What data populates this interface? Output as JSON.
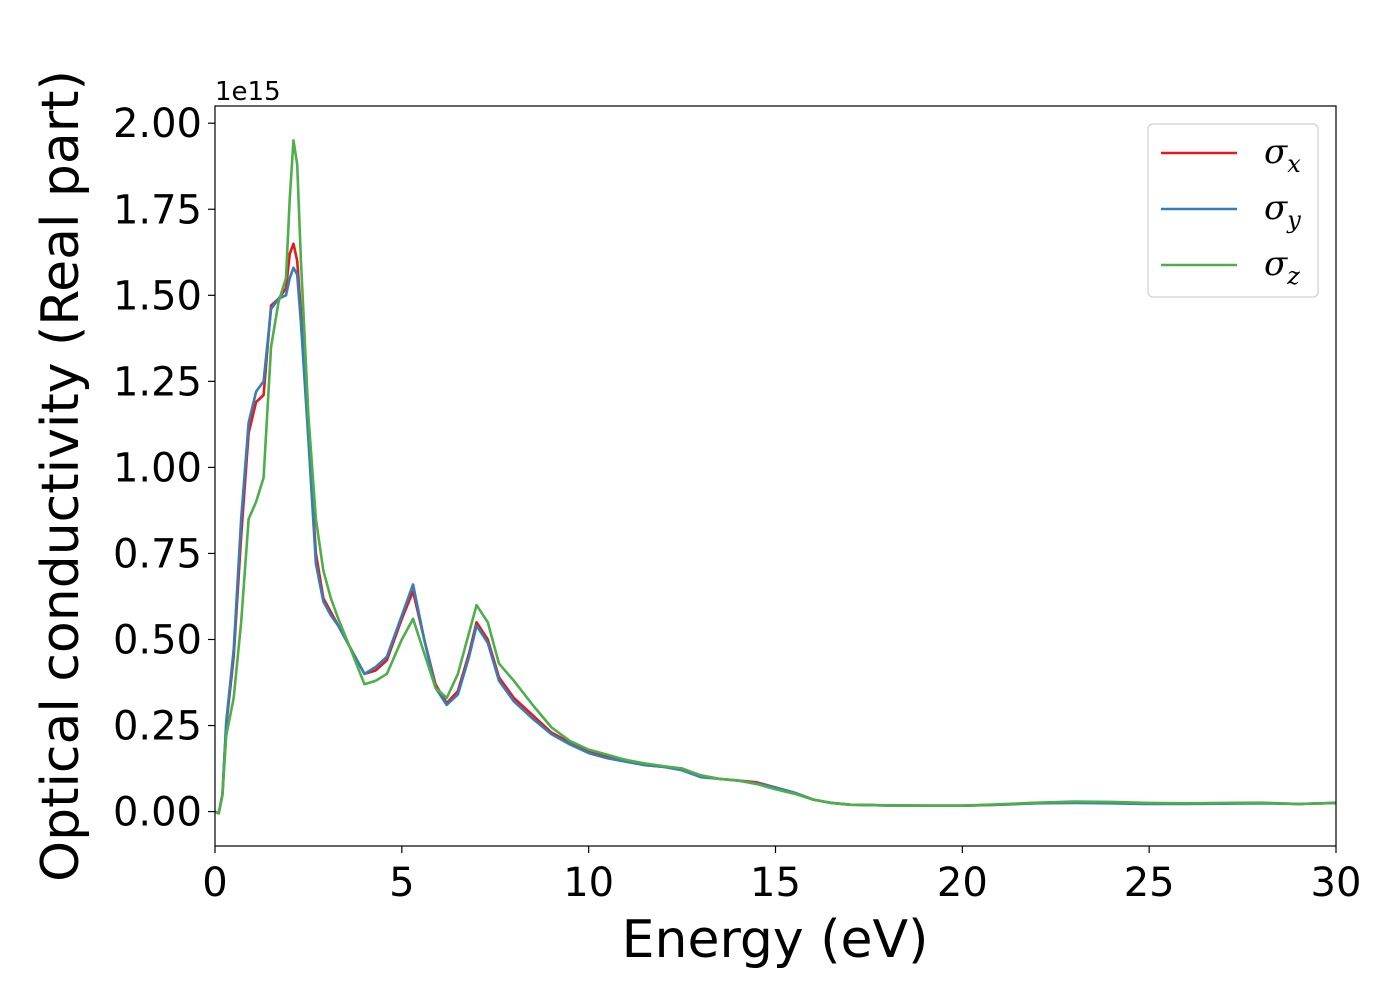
{
  "chart_data": {
    "type": "line",
    "title": "",
    "xlabel": "Energy (eV)",
    "ylabel": "Optical conductivity (Real part)",
    "y_offset_label": "1e15",
    "xlim": [
      0,
      30
    ],
    "ylim": [
      -0.1,
      2.05
    ],
    "x_ticks": [
      0,
      5,
      10,
      15,
      20,
      25,
      30
    ],
    "x_tick_labels": [
      "0",
      "5",
      "10",
      "15",
      "20",
      "25",
      "30"
    ],
    "y_ticks": [
      0.0,
      0.25,
      0.5,
      0.75,
      1.0,
      1.25,
      1.5,
      1.75,
      2.0
    ],
    "y_tick_labels": [
      "0.00",
      "0.25",
      "0.50",
      "0.75",
      "1.00",
      "1.25",
      "1.50",
      "1.75",
      "2.00"
    ],
    "grid": false,
    "legend_position": "top-right",
    "series": [
      {
        "name": "σx",
        "name_base": "σ",
        "name_sub": "x",
        "color": "#e41a1c",
        "x": [
          0,
          0.1,
          0.2,
          0.3,
          0.5,
          0.7,
          0.9,
          1.1,
          1.3,
          1.5,
          1.7,
          1.9,
          2.0,
          2.1,
          2.2,
          2.3,
          2.5,
          2.7,
          2.9,
          3.1,
          3.3,
          3.6,
          4.0,
          4.3,
          4.6,
          5.0,
          5.3,
          5.6,
          5.9,
          6.2,
          6.5,
          6.8,
          7.0,
          7.3,
          7.6,
          8.0,
          8.5,
          9.0,
          9.5,
          10.0,
          10.5,
          11.0,
          11.5,
          12.0,
          12.5,
          13.0,
          13.5,
          14.0,
          14.5,
          15.0,
          15.5,
          16.0,
          16.5,
          17.0,
          18.0,
          19.0,
          20.0,
          21.0,
          22.0,
          23.0,
          24.0,
          25.0,
          26.0,
          27.0,
          28.0,
          29.0,
          30.0
        ],
        "y": [
          0.0,
          -0.005,
          0.05,
          0.25,
          0.45,
          0.8,
          1.1,
          1.19,
          1.21,
          1.47,
          1.49,
          1.52,
          1.62,
          1.65,
          1.6,
          1.45,
          1.1,
          0.75,
          0.62,
          0.58,
          0.54,
          0.48,
          0.4,
          0.41,
          0.44,
          0.56,
          0.64,
          0.5,
          0.37,
          0.315,
          0.35,
          0.46,
          0.55,
          0.5,
          0.39,
          0.33,
          0.28,
          0.23,
          0.2,
          0.175,
          0.16,
          0.15,
          0.135,
          0.13,
          0.125,
          0.105,
          0.095,
          0.09,
          0.085,
          0.07,
          0.055,
          0.035,
          0.025,
          0.02,
          0.018,
          0.017,
          0.017,
          0.02,
          0.025,
          0.027,
          0.026,
          0.024,
          0.023,
          0.024,
          0.025,
          0.022,
          0.025
        ]
      },
      {
        "name": "σy",
        "name_base": "σ",
        "name_sub": "y",
        "color": "#377eb8",
        "x": [
          0,
          0.1,
          0.2,
          0.3,
          0.5,
          0.7,
          0.9,
          1.1,
          1.3,
          1.5,
          1.7,
          1.9,
          2.0,
          2.1,
          2.2,
          2.3,
          2.5,
          2.7,
          2.9,
          3.1,
          3.3,
          3.6,
          4.0,
          4.3,
          4.6,
          5.0,
          5.3,
          5.6,
          5.9,
          6.2,
          6.5,
          6.8,
          7.0,
          7.3,
          7.6,
          8.0,
          8.5,
          9.0,
          9.5,
          10.0,
          10.5,
          11.0,
          11.5,
          12.0,
          12.5,
          13.0,
          13.5,
          14.0,
          14.5,
          15.0,
          15.5,
          16.0,
          16.5,
          17.0,
          18.0,
          19.0,
          20.0,
          21.0,
          22.0,
          23.0,
          24.0,
          25.0,
          26.0,
          27.0,
          28.0,
          29.0,
          30.0
        ],
        "y": [
          0.0,
          -0.005,
          0.05,
          0.26,
          0.47,
          0.85,
          1.13,
          1.22,
          1.25,
          1.46,
          1.49,
          1.5,
          1.55,
          1.58,
          1.56,
          1.42,
          1.08,
          0.72,
          0.61,
          0.57,
          0.54,
          0.48,
          0.4,
          0.42,
          0.45,
          0.57,
          0.66,
          0.5,
          0.36,
          0.31,
          0.34,
          0.45,
          0.54,
          0.49,
          0.38,
          0.32,
          0.27,
          0.225,
          0.195,
          0.17,
          0.155,
          0.145,
          0.135,
          0.13,
          0.12,
          0.1,
          0.095,
          0.09,
          0.082,
          0.07,
          0.055,
          0.035,
          0.025,
          0.02,
          0.018,
          0.017,
          0.017,
          0.02,
          0.024,
          0.025,
          0.024,
          0.022,
          0.022,
          0.023,
          0.024,
          0.022,
          0.025
        ]
      },
      {
        "name": "σz",
        "name_base": "σ",
        "name_sub": "z",
        "color": "#4daf4a",
        "x": [
          0,
          0.1,
          0.2,
          0.3,
          0.5,
          0.7,
          0.9,
          1.1,
          1.3,
          1.5,
          1.7,
          1.9,
          2.0,
          2.1,
          2.2,
          2.3,
          2.5,
          2.7,
          2.9,
          3.1,
          3.3,
          3.6,
          4.0,
          4.3,
          4.6,
          5.0,
          5.3,
          5.6,
          5.9,
          6.2,
          6.5,
          6.8,
          7.0,
          7.3,
          7.6,
          8.0,
          8.5,
          9.0,
          9.5,
          10.0,
          10.5,
          11.0,
          11.5,
          12.0,
          12.5,
          13.0,
          13.5,
          14.0,
          14.5,
          15.0,
          15.5,
          16.0,
          16.5,
          17.0,
          18.0,
          19.0,
          20.0,
          21.0,
          22.0,
          23.0,
          24.0,
          25.0,
          26.0,
          27.0,
          28.0,
          29.0,
          30.0
        ],
        "y": [
          0.0,
          -0.005,
          0.05,
          0.22,
          0.33,
          0.55,
          0.85,
          0.9,
          0.97,
          1.35,
          1.48,
          1.55,
          1.78,
          1.95,
          1.88,
          1.6,
          1.15,
          0.85,
          0.7,
          0.62,
          0.56,
          0.48,
          0.37,
          0.38,
          0.4,
          0.5,
          0.56,
          0.46,
          0.36,
          0.33,
          0.4,
          0.52,
          0.6,
          0.55,
          0.43,
          0.38,
          0.31,
          0.245,
          0.205,
          0.18,
          0.165,
          0.15,
          0.14,
          0.132,
          0.125,
          0.105,
          0.095,
          0.09,
          0.08,
          0.065,
          0.052,
          0.035,
          0.025,
          0.02,
          0.018,
          0.017,
          0.017,
          0.021,
          0.026,
          0.029,
          0.028,
          0.025,
          0.024,
          0.025,
          0.026,
          0.022,
          0.025
        ]
      }
    ]
  }
}
